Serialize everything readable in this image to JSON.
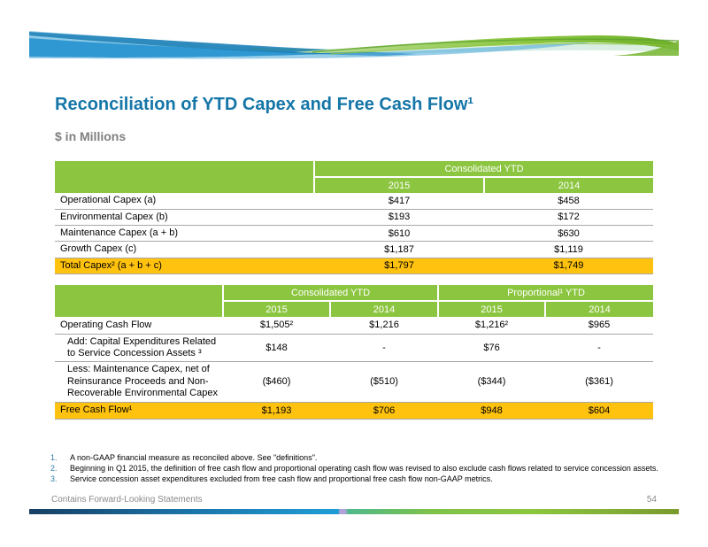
{
  "slide": {
    "title": "Reconciliation of YTD Capex and Free Cash Flow¹",
    "subtitle": "$ in Millions",
    "footer_left": "Contains Forward-Looking Statements",
    "page_number": "54"
  },
  "capex_table": {
    "group_header": "Consolidated YTD",
    "year_headers": [
      "2015",
      "2014"
    ],
    "rows": [
      {
        "label": "Operational Capex (a)",
        "values": [
          "$417",
          "$458"
        ],
        "highlight": false
      },
      {
        "label": "Environmental Capex (b)",
        "values": [
          "$193",
          "$172"
        ],
        "highlight": false
      },
      {
        "label": "Maintenance Capex (a + b)",
        "values": [
          "$610",
          "$630"
        ],
        "highlight": false
      },
      {
        "label": "Growth Capex (c)",
        "values": [
          "$1,187",
          "$1,119"
        ],
        "highlight": false
      },
      {
        "label": "Total Capex² (a + b + c)",
        "values": [
          "$1,797",
          "$1,749"
        ],
        "highlight": true
      }
    ]
  },
  "cash_flow_table": {
    "group_headers": [
      "Consolidated YTD",
      "Proportional¹ YTD"
    ],
    "year_headers": [
      "2015",
      "2014",
      "2015",
      "2014"
    ],
    "rows": [
      {
        "label": "Operating Cash Flow",
        "values": [
          "$1,505²",
          "$1,216",
          "$1,216²",
          "$965"
        ],
        "highlight": false,
        "indent": false
      },
      {
        "label": "Add: Capital Expenditures Related to Service Concession Assets ³",
        "values": [
          "$148",
          "-",
          "$76",
          "-"
        ],
        "highlight": false,
        "indent": true
      },
      {
        "label": "Less: Maintenance Capex, net of Reinsurance Proceeds and Non-Recoverable Environmental Capex",
        "values": [
          "($460)",
          "($510)",
          "($344)",
          "($361)"
        ],
        "highlight": false,
        "indent": true
      },
      {
        "label": "Free Cash Flow¹",
        "values": [
          "$1,193",
          "$706",
          "$948",
          "$604"
        ],
        "highlight": true,
        "indent": false
      }
    ]
  },
  "footnotes": [
    {
      "num": "1.",
      "text": "A non-GAAP financial measure as reconciled above.  See \"definitions\"."
    },
    {
      "num": "2.",
      "text": "Beginning in Q1 2015, the definition of free cash flow and proportional operating cash flow was revised to also exclude cash flows related to service concession assets."
    },
    {
      "num": "3.",
      "text": "Service concession asset expenditures excluded from free cash flow and proportional free cash flow non-GAAP metrics."
    }
  ],
  "colors": {
    "header_green": "#8CC540",
    "highlight_yellow": "#FFC20E",
    "title_blue": "#1576A8",
    "footnote_number_blue": "#2E7CA8",
    "footer_bar_blue": "#1F9BD3",
    "footer_bar_green": "#8CC63F",
    "footer_text_gray": "#8A8A8A"
  }
}
